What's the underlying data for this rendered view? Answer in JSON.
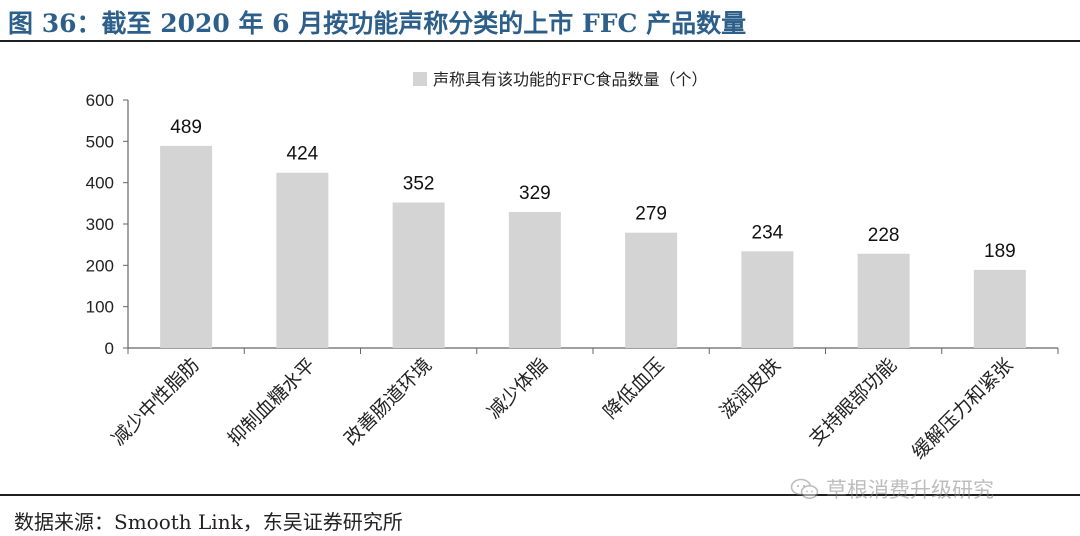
{
  "header": {
    "title": "图 36：截至 2020 年 6 月按功能声称分类的上市 FFC 产品数量"
  },
  "footer": {
    "source": "数据来源：Smooth Link，东吴证券研究所"
  },
  "watermark": {
    "text": "草根消费升级研究",
    "icon": "wechat-icon"
  },
  "chart_data": {
    "type": "bar",
    "categories": [
      "减少中性脂肪",
      "抑制血糖水平",
      "改善肠道环境",
      "减少体脂",
      "降低血压",
      "滋润皮肤",
      "支持眼部功能",
      "缓解压力和紧张"
    ],
    "series": [
      {
        "name": "声称具有该功能的FFC食品数量（个）",
        "values": [
          489,
          424,
          352,
          329,
          279,
          234,
          228,
          189
        ]
      }
    ],
    "yticks": [
      "0",
      "100",
      "200",
      "300",
      "400",
      "500",
      "600"
    ],
    "ylim": [
      0,
      600
    ],
    "grid": false,
    "legend": "top-center",
    "colors": {
      "bar": "#d4d4d4",
      "axis": "#666666"
    }
  }
}
